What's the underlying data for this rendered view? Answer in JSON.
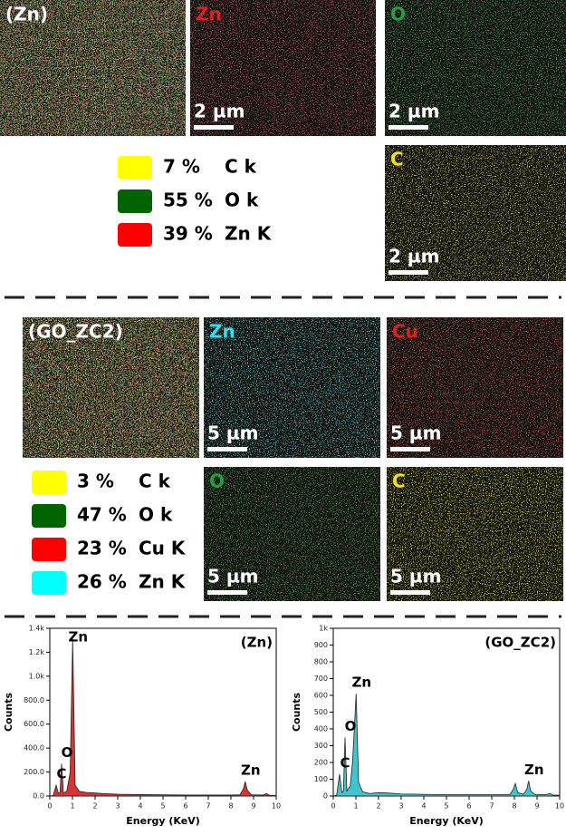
{
  "maps": [
    {
      "label": "(Zn)",
      "label_color": "#ffffff",
      "tints": [
        "#e0d040",
        "#c03030",
        "#30a040"
      ]
    },
    {
      "label": "Zn",
      "label_color": "#e02020",
      "tints": [
        "#b02030"
      ],
      "scale": "2 µm"
    },
    {
      "label": "O",
      "label_color": "#20a040",
      "tints": [
        "#1a6a2a"
      ],
      "scale": "2 µm"
    },
    {
      "label": "C",
      "label_color": "#f0e020",
      "tints": [
        "#c8c040"
      ],
      "scale": "2 µm"
    },
    {
      "label": "(GO_ZC2)",
      "label_color": "#ffffff",
      "tints": [
        "#d02020",
        "#30a040",
        "#d0d040"
      ]
    },
    {
      "label": "Zn",
      "label_color": "#30e0f0",
      "tints": [
        "#30b8c8"
      ],
      "scale": "5 µm"
    },
    {
      "label": "Cu",
      "label_color": "#e02020",
      "tints": [
        "#c02020"
      ],
      "scale": "5 µm"
    },
    {
      "label": "O",
      "label_color": "#20a040",
      "tints": [
        "#1e6a26"
      ],
      "scale": "5 µm"
    },
    {
      "label": "C",
      "label_color": "#f0e020",
      "tints": [
        "#e0e020"
      ],
      "scale": "5 µm"
    }
  ],
  "legends": [
    [
      {
        "color": "#ffff00",
        "percent": "7 %",
        "label": "C k"
      },
      {
        "color": "#006400",
        "percent": "55 %",
        "label": "O k"
      },
      {
        "color": "#ff0000",
        "percent": "39 %",
        "label": "Zn K"
      }
    ],
    [
      {
        "color": "#ffff00",
        "percent": "3 %",
        "label": "C k"
      },
      {
        "color": "#006400",
        "percent": "47 %",
        "label": "O k"
      },
      {
        "color": "#ff0000",
        "percent": "23 %",
        "label": "Cu K"
      },
      {
        "color": "#00ffff",
        "percent": "26 %",
        "label": "Zn K"
      }
    ]
  ],
  "chart_data": [
    {
      "type": "area",
      "title": "(Zn)",
      "xlabel": "Energy (KeV)",
      "ylabel": "Counts",
      "color": "#d01010",
      "x": [
        0,
        0.15,
        0.28,
        0.38,
        0.45,
        0.52,
        0.6,
        0.75,
        0.9,
        1.01,
        1.12,
        1.3,
        1.6,
        2,
        2.4,
        3,
        4,
        5,
        6,
        7,
        8,
        8.4,
        8.55,
        8.63,
        8.72,
        8.9,
        9.4,
        9.57,
        9.7,
        10
      ],
      "values": [
        0,
        5,
        90,
        20,
        30,
        270,
        25,
        40,
        200,
        1310,
        90,
        40,
        30,
        25,
        20,
        15,
        12,
        10,
        8,
        8,
        8,
        10,
        60,
        120,
        50,
        10,
        8,
        20,
        6,
        5
      ],
      "xlim": [
        0,
        10
      ],
      "xticks": [
        0,
        1,
        2,
        3,
        4,
        5,
        6,
        7,
        8,
        9,
        10
      ],
      "ylim": [
        0,
        1400
      ],
      "yticks": [
        {
          "value": 0,
          "label": "0.0"
        },
        {
          "value": 200,
          "label": "200.0"
        },
        {
          "value": 400,
          "label": "400.0"
        },
        {
          "value": 600,
          "label": "600.0"
        },
        {
          "value": 800,
          "label": "800.0"
        },
        {
          "value": 1000,
          "label": "1.0k"
        },
        {
          "value": 1200,
          "label": "1.2k"
        },
        {
          "value": 1400,
          "label": "1.4k"
        }
      ],
      "annotations": [
        {
          "label": "C",
          "x": 0.28,
          "y": 90
        },
        {
          "label": "O",
          "x": 0.52,
          "y": 270
        },
        {
          "label": "Zn",
          "x": 1.01,
          "y": 1310
        },
        {
          "label": "Zn",
          "x": 8.63,
          "y": 120
        }
      ]
    },
    {
      "type": "area",
      "title": "(GO_ZC2)",
      "xlabel": "Energy (KeV)",
      "ylabel": "Counts",
      "color": "#20b8c8",
      "x": [
        0,
        0.15,
        0.28,
        0.38,
        0.45,
        0.52,
        0.6,
        0.75,
        0.85,
        0.93,
        1.01,
        1.12,
        1.3,
        1.6,
        2,
        2.4,
        3,
        4,
        5,
        6,
        7,
        7.8,
        7.95,
        8.04,
        8.15,
        8.4,
        8.55,
        8.63,
        8.72,
        8.9,
        9.4,
        9.57,
        9.7,
        10
      ],
      "values": [
        0,
        5,
        130,
        20,
        30,
        350,
        30,
        60,
        200,
        400,
        610,
        80,
        25,
        15,
        20,
        18,
        12,
        10,
        8,
        8,
        8,
        8,
        40,
        75,
        20,
        10,
        40,
        90,
        30,
        10,
        8,
        15,
        5,
        5
      ],
      "xlim": [
        0,
        10
      ],
      "xticks": [
        0,
        1,
        2,
        3,
        4,
        5,
        6,
        7,
        8,
        9,
        10
      ],
      "ylim": [
        0,
        1000
      ],
      "yticks": [
        0,
        100,
        200,
        300,
        400,
        500,
        600,
        700,
        800,
        900,
        {
          "value": 1000,
          "label": "1k"
        }
      ],
      "annotations": [
        {
          "label": "C",
          "x": 0.28,
          "y": 130
        },
        {
          "label": "O",
          "x": 0.52,
          "y": 350
        },
        {
          "label": "Zn",
          "x": 1.01,
          "y": 610
        },
        {
          "label": "Zn",
          "x": 8.63,
          "y": 90
        }
      ]
    }
  ]
}
